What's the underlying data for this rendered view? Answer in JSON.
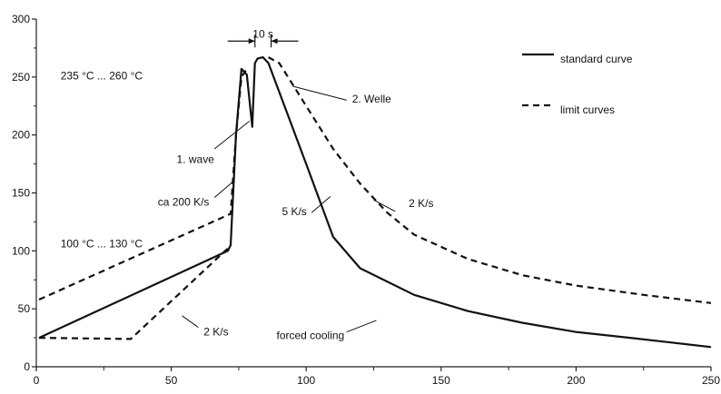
{
  "chart_data": {
    "type": "line",
    "title": "",
    "xlabel": "",
    "ylabel": "",
    "xlim": [
      0,
      250
    ],
    "ylim": [
      0,
      300
    ],
    "xticks": [
      0,
      50,
      100,
      150,
      200,
      250
    ],
    "yticks": [
      0,
      50,
      100,
      150,
      200,
      250,
      300
    ],
    "xtick_labels": [
      "0",
      "50",
      "100",
      "150",
      "200",
      "250"
    ],
    "ytick_labels": [
      "0",
      "50",
      "100",
      "150",
      "200",
      "250",
      "300"
    ],
    "grid": false,
    "legend_position": "top-right",
    "legend": [
      {
        "label": "standard curve",
        "style": "solid"
      },
      {
        "label": "limit curves",
        "style": "dashed"
      }
    ],
    "series": [
      {
        "name": "standard curve",
        "style": "solid",
        "color": "#111111",
        "x": [
          1,
          71,
          72,
          74,
          76,
          78,
          80,
          81,
          82,
          84,
          86,
          100,
          110,
          120,
          140,
          160,
          180,
          200,
          220,
          235,
          250
        ],
        "y": [
          25,
          100,
          105,
          200,
          257,
          252,
          207,
          262,
          266,
          267,
          262,
          175,
          112,
          85,
          62,
          48,
          38,
          30,
          25,
          21,
          17
        ]
      },
      {
        "name": "limit curves",
        "style": "dashed",
        "color": "#111111",
        "x": [
          1,
          72,
          74,
          76,
          78
        ],
        "y": [
          58,
          132,
          200,
          250,
          257
        ]
      },
      {
        "name": "limit curves",
        "style": "dashed",
        "color": "#111111",
        "x": [
          1,
          35,
          70,
          72
        ],
        "y": [
          25,
          24,
          100,
          104
        ]
      },
      {
        "name": "limit curves",
        "style": "dashed",
        "color": "#111111",
        "x": [
          86,
          90,
          100,
          110,
          120,
          130,
          140,
          160,
          180,
          200,
          225,
          250
        ],
        "y": [
          267,
          262,
          225,
          188,
          158,
          133,
          114,
          93,
          79,
          70,
          62,
          55
        ]
      }
    ],
    "interval_marker": {
      "label": "10 s",
      "x": [
        81,
        87
      ],
      "y": 281
    },
    "annotations": [
      {
        "text": "235 °C ... 260 °C",
        "x": 9,
        "y": 248
      },
      {
        "text": "100 °C ... 130 °C",
        "x": 9,
        "y": 103
      },
      {
        "text": "1. wave",
        "x": 52,
        "y": 176
      },
      {
        "text": "ca 200 K/s",
        "x": 45,
        "y": 139
      },
      {
        "text": "2. Welle",
        "x": 117,
        "y": 228
      },
      {
        "text": "5 K/s",
        "x": 91,
        "y": 131
      },
      {
        "text": "2 K/s",
        "x": 138,
        "y": 138
      },
      {
        "text": "2 K/s",
        "x": 62,
        "y": 27
      },
      {
        "text": "forced cooling",
        "x": 89,
        "y": 24
      }
    ],
    "leaders": [
      {
        "from": [
          66,
          188
        ],
        "to": [
          79,
          212
        ]
      },
      {
        "from": [
          66,
          146
        ],
        "to": [
          73,
          160
        ]
      },
      {
        "from": [
          115,
          230
        ],
        "to": [
          95,
          242
        ]
      },
      {
        "from": [
          102,
          133
        ],
        "to": [
          109,
          147
        ]
      },
      {
        "from": [
          133,
          134
        ],
        "to": [
          125,
          144
        ]
      },
      {
        "from": [
          60,
          34
        ],
        "to": [
          54,
          44
        ]
      },
      {
        "from": [
          115,
          30
        ],
        "to": [
          126,
          40
        ]
      }
    ]
  }
}
